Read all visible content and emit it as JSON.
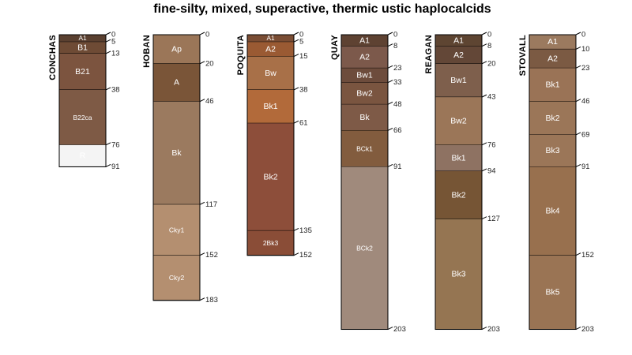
{
  "title": "fine-silty, mixed, superactive, thermic ustic haplocalcids",
  "depth_units": "cm",
  "profiles": [
    {
      "name": "CONCHAS",
      "horizons": [
        {
          "label": "A1",
          "top": 0,
          "bottom": 5,
          "color": "#5a4030",
          "text": "#ffffff"
        },
        {
          "label": "B1",
          "top": 5,
          "bottom": 13,
          "color": "#6e4b35",
          "text": "#ffffff"
        },
        {
          "label": "B21",
          "top": 13,
          "bottom": 38,
          "color": "#7c543f",
          "text": "#ffffff"
        },
        {
          "label": "B22ca",
          "top": 38,
          "bottom": 76,
          "color": "#7e5a45",
          "text": "#ffffff"
        },
        {
          "label": "R",
          "top": 76,
          "bottom": 91,
          "color": "#f4f4f4",
          "text": "#000000"
        }
      ],
      "depth_labels": [
        "0",
        "5",
        "13",
        "38",
        "76",
        "91"
      ]
    },
    {
      "name": "HOBAN",
      "horizons": [
        {
          "label": "Ap",
          "top": 0,
          "bottom": 20,
          "color": "#9b7658",
          "text": "#ffffff"
        },
        {
          "label": "A",
          "top": 20,
          "bottom": 46,
          "color": "#7a5538",
          "text": "#ffffff"
        },
        {
          "label": "Bk",
          "top": 46,
          "bottom": 117,
          "color": "#9b7a5f",
          "text": "#ffffff"
        },
        {
          "label": "Cky1",
          "top": 117,
          "bottom": 152,
          "color": "#b48f70",
          "text": "#333333"
        },
        {
          "label": "Cky2",
          "top": 152,
          "bottom": 183,
          "color": "#b48f70",
          "text": "#333333"
        }
      ],
      "depth_labels": [
        "0",
        "20",
        "46",
        "117",
        "152",
        "183"
      ]
    },
    {
      "name": "POQUITA",
      "horizons": [
        {
          "label": "A1",
          "top": 0,
          "bottom": 5,
          "color": "#7a4d34",
          "text": "#ffffff"
        },
        {
          "label": "A2",
          "top": 5,
          "bottom": 15,
          "color": "#9a5a33",
          "text": "#ffffff"
        },
        {
          "label": "Bw",
          "top": 15,
          "bottom": 38,
          "color": "#a87048",
          "text": "#ffffff"
        },
        {
          "label": "Bk1",
          "top": 38,
          "bottom": 61,
          "color": "#b26a3a",
          "text": "#111111"
        },
        {
          "label": "Bk2",
          "top": 61,
          "bottom": 135,
          "color": "#8d4e3a",
          "text": "#ffffff"
        },
        {
          "label": "2Bk3",
          "top": 135,
          "bottom": 152,
          "color": "#8a4d37",
          "text": "#ffffff"
        }
      ],
      "depth_labels": [
        "0",
        "5",
        "15",
        "38",
        "61",
        "135",
        "152"
      ]
    },
    {
      "name": "QUAY",
      "horizons": [
        {
          "label": "A1",
          "top": 0,
          "bottom": 8,
          "color": "#5e4232",
          "text": "#ffffff"
        },
        {
          "label": "A2",
          "top": 8,
          "bottom": 23,
          "color": "#7c594b",
          "text": "#ffffff"
        },
        {
          "label": "Bw1",
          "top": 23,
          "bottom": 33,
          "color": "#6d4c3c",
          "text": "#ffffff"
        },
        {
          "label": "Bw2",
          "top": 33,
          "bottom": 48,
          "color": "#7a5540",
          "text": "#ffffff"
        },
        {
          "label": "Bk",
          "top": 48,
          "bottom": 66,
          "color": "#7e5a47",
          "text": "#ffffff"
        },
        {
          "label": "BCk1",
          "top": 66,
          "bottom": 91,
          "color": "#825c3e",
          "text": "#ffffff"
        },
        {
          "label": "BCk2",
          "top": 91,
          "bottom": 203,
          "color": "#a08a7c",
          "text": "#ffffff"
        }
      ],
      "depth_labels": [
        "0",
        "8",
        "23",
        "33",
        "48",
        "66",
        "91",
        "203"
      ]
    },
    {
      "name": "REAGAN",
      "horizons": [
        {
          "label": "A1",
          "top": 0,
          "bottom": 8,
          "color": "#5e4532",
          "text": "#ffffff"
        },
        {
          "label": "A2",
          "top": 8,
          "bottom": 20,
          "color": "#634737",
          "text": "#ffffff"
        },
        {
          "label": "Bw1",
          "top": 20,
          "bottom": 43,
          "color": "#7e5f4c",
          "text": "#ffffff"
        },
        {
          "label": "Bw2",
          "top": 43,
          "bottom": 76,
          "color": "#9b7658",
          "text": "#ffffff"
        },
        {
          "label": "Bk1",
          "top": 76,
          "bottom": 94,
          "color": "#8e7262",
          "text": "#ffffff"
        },
        {
          "label": "Bk2",
          "top": 94,
          "bottom": 127,
          "color": "#765535",
          "text": "#ffffff"
        },
        {
          "label": "Bk3",
          "top": 127,
          "bottom": 203,
          "color": "#957552",
          "text": "#ffffff"
        }
      ],
      "depth_labels": [
        "0",
        "8",
        "20",
        "43",
        "76",
        "94",
        "127",
        "203"
      ]
    },
    {
      "name": "STOVALL",
      "horizons": [
        {
          "label": "A1",
          "top": 0,
          "bottom": 10,
          "color": "#9b7a5f",
          "text": "#ffffff"
        },
        {
          "label": "A2",
          "top": 10,
          "bottom": 23,
          "color": "#7b5a43",
          "text": "#ffffff"
        },
        {
          "label": "Bk1",
          "top": 23,
          "bottom": 46,
          "color": "#9a7356",
          "text": "#ffffff"
        },
        {
          "label": "Bk2",
          "top": 46,
          "bottom": 69,
          "color": "#9b7658",
          "text": "#ffffff"
        },
        {
          "label": "Bk3",
          "top": 69,
          "bottom": 91,
          "color": "#9b7658",
          "text": "#ffffff"
        },
        {
          "label": "Bk4",
          "top": 91,
          "bottom": 152,
          "color": "#98704e",
          "text": "#ffffff"
        },
        {
          "label": "Bk5",
          "top": 152,
          "bottom": 203,
          "color": "#9a7454",
          "text": "#ffffff"
        }
      ],
      "depth_labels": [
        "0",
        "10",
        "23",
        "46",
        "69",
        "91",
        "152",
        "203"
      ]
    }
  ]
}
